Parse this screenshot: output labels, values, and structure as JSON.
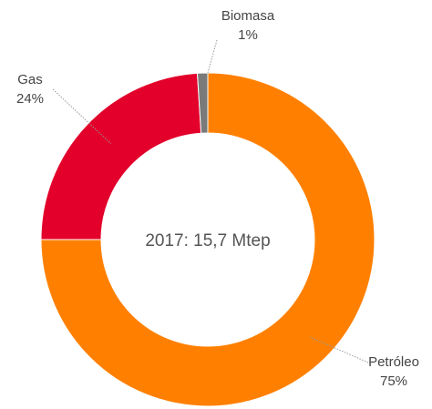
{
  "chart_data": {
    "type": "donut",
    "center_label": "2017: 15,7 Mtep",
    "categories": [
      "Petróleo",
      "Gas",
      "Biomasa"
    ],
    "values": [
      75,
      24,
      1
    ],
    "value_labels": [
      "75%",
      "24%",
      "1%"
    ],
    "colors": [
      "#ff8000",
      "#e3002b",
      "#7a7a7a"
    ]
  }
}
